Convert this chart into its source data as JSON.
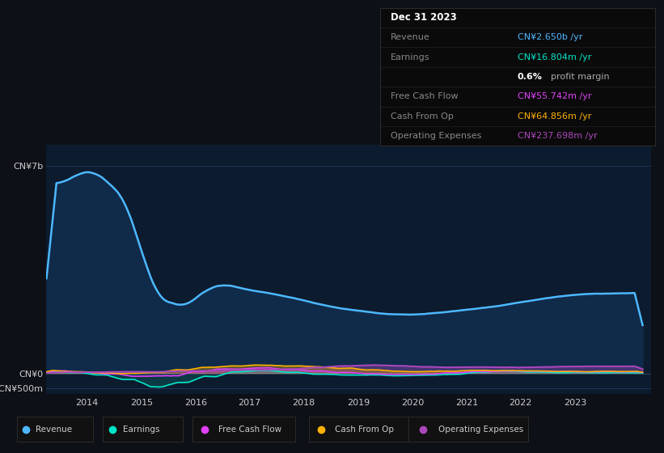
{
  "bg_color": "#0d1117",
  "plot_bg_color": "#0d1b2e",
  "ylim": [
    -700000000,
    7700000000
  ],
  "xtick_labels": [
    "2014",
    "2015",
    "2016",
    "2017",
    "2018",
    "2019",
    "2020",
    "2021",
    "2022",
    "2023"
  ],
  "xtick_positions": [
    2014,
    2015,
    2016,
    2017,
    2018,
    2019,
    2020,
    2021,
    2022,
    2023
  ],
  "grid_color": "#1e3a5f",
  "fill_color": "#102a4a",
  "line_revenue_color": "#4db8ff",
  "line_earnings_color": "#00e5c8",
  "line_fcf_color": "#e040fb",
  "line_cashfromop_color": "#ffb300",
  "line_opex_color": "#ab47bc",
  "legend_items": [
    {
      "label": "Revenue",
      "color": "#4db8ff"
    },
    {
      "label": "Earnings",
      "color": "#00e5c8"
    },
    {
      "label": "Free Cash Flow",
      "color": "#e040fb"
    },
    {
      "label": "Cash From Op",
      "color": "#ffb300"
    },
    {
      "label": "Operating Expenses",
      "color": "#ab47bc"
    }
  ],
  "info_box_rows": [
    {
      "label": "Dec 31 2023",
      "value": "",
      "value_color": "#ffffff",
      "label_color": "#ffffff",
      "is_title": true
    },
    {
      "label": "Revenue",
      "value": "CN¥2.650b /yr",
      "value_color": "#4db8ff",
      "label_color": "#888888"
    },
    {
      "label": "Earnings",
      "value": "CN¥16.804m /yr",
      "value_color": "#00e5c8",
      "label_color": "#888888"
    },
    {
      "label": "",
      "value": "0.6% profit margin",
      "value_color": "#cccccc",
      "label_color": "#888888",
      "is_margin": true
    },
    {
      "label": "Free Cash Flow",
      "value": "CN¥55.742m /yr",
      "value_color": "#e040fb",
      "label_color": "#888888"
    },
    {
      "label": "Cash From Op",
      "value": "CN¥64.856m /yr",
      "value_color": "#ffb300",
      "label_color": "#888888"
    },
    {
      "label": "Operating Expenses",
      "value": "CN¥237.698m /yr",
      "value_color": "#ab47bc",
      "label_color": "#888888"
    }
  ]
}
